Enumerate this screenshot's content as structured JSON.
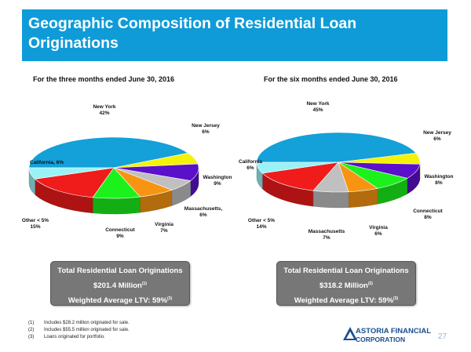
{
  "header": {
    "title": "Geographic Composition of Residential Loan\nOriginations"
  },
  "chart_data": [
    {
      "type": "pie",
      "title": "For the three months ended June 30, 2016",
      "slices": [
        {
          "label": "New York",
          "value": 42,
          "display": "42%",
          "color": "#14a0d8"
        },
        {
          "label": "New Jersey",
          "value": 6,
          "display": "6%",
          "color": "#f4f20a"
        },
        {
          "label": "Washington",
          "value": 9,
          "display": "9%",
          "color": "#5b10c9"
        },
        {
          "label": "Massachusetts,",
          "value": 6,
          "display": "6%",
          "color": "#c0c0c0"
        },
        {
          "label": "Virginia",
          "value": 7,
          "display": "7%",
          "color": "#f79512"
        },
        {
          "label": "Connecticut",
          "value": 9,
          "display": "9%",
          "color": "#1bf21b"
        },
        {
          "label": "Other < 5%",
          "value": 15,
          "display": "15%",
          "color": "#f01b1b"
        },
        {
          "label": "California,",
          "value": 6,
          "display": "6%",
          "color": "#9af2f6"
        }
      ]
    },
    {
      "type": "pie",
      "title": "For the six months ended June 30, 2016",
      "slices": [
        {
          "label": "New York",
          "value": 45,
          "display": "45%",
          "color": "#14a0d8"
        },
        {
          "label": "New Jersey",
          "value": 6,
          "display": "6%",
          "color": "#f4f20a"
        },
        {
          "label": "Washington",
          "value": 8,
          "display": "8%",
          "color": "#5b10c9"
        },
        {
          "label": "Connecticut",
          "value": 8,
          "display": "8%",
          "color": "#1bf21b"
        },
        {
          "label": "Virginia",
          "value": 6,
          "display": "6%",
          "color": "#f79512"
        },
        {
          "label": "Massachusetts",
          "value": 7,
          "display": "7%",
          "color": "#c0c0c0"
        },
        {
          "label": "Other < 5%",
          "value": 14,
          "display": "14%",
          "color": "#f01b1b"
        },
        {
          "label": "California",
          "value": 6,
          "display": "6%",
          "color": "#9af2f6"
        }
      ]
    }
  ],
  "summaries": [
    {
      "line1": "Total Residential Loan Originations",
      "line2": "$201.4 Million",
      "line2_note": "(1)",
      "line3": "Weighted Average LTV: 59%",
      "line3_note": "(3)"
    },
    {
      "line1": "Total Residential Loan Originations",
      "line2": "$318.2 Million",
      "line2_note": "(2)",
      "line3": "Weighted Average LTV: 59%",
      "line3_note": "(3)"
    }
  ],
  "footnotes": [
    {
      "mark": "(1)",
      "text": "Includes $28.2 million originated for sale."
    },
    {
      "mark": "(2)",
      "text": "Includes $55.5 million originated for sale."
    },
    {
      "mark": "(3)",
      "text": "Loans originated for portfolio."
    }
  ],
  "logo": {
    "line1": "ASTORIA FINANCIAL",
    "line2": "CORPORATION"
  },
  "page_number": "27"
}
